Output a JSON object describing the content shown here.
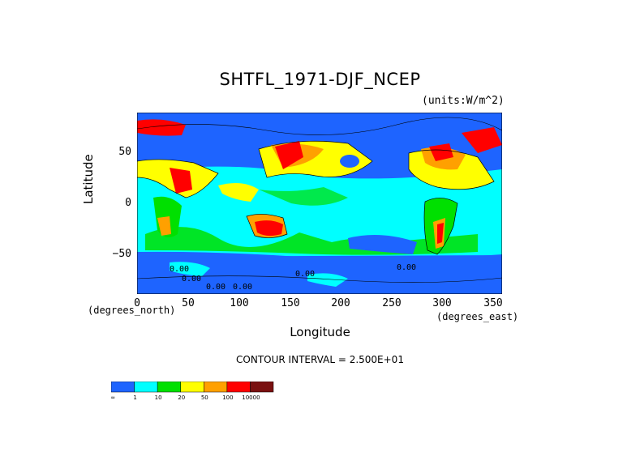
{
  "title": "SHTFL_1971-DJF_NCEP",
  "units": "(units:W/m^2)",
  "y_axis": {
    "label": "Latitude",
    "ticks": [
      "50",
      "0",
      "−50"
    ],
    "tick_values": [
      50,
      0,
      -50
    ]
  },
  "x_axis": {
    "label": "Longitude",
    "ticks": [
      "0",
      "50",
      "100",
      "150",
      "200",
      "250",
      "300",
      "350"
    ],
    "tick_values": [
      0,
      50,
      100,
      150,
      200,
      250,
      300,
      350
    ],
    "unit_left": "(degrees_north)",
    "unit_right": "(degrees_east)"
  },
  "contour_interval": "CONTOUR INTERVAL = 2.500E+01",
  "map_labels": [
    "0.00",
    "0.00",
    "0.00",
    "0.00",
    "0.00",
    "0.00"
  ],
  "colorbar": {
    "labels": [
      "-∞",
      "1",
      "10",
      "20",
      "50",
      "100",
      "10000"
    ],
    "colors": [
      "#1e64ff",
      "#00ffff",
      "#00e000",
      "#ffff00",
      "#ffa000",
      "#ff0000",
      "#7a1010"
    ]
  },
  "colors": {
    "ocean_cold": "#1e64ff",
    "ocean_low": "#00ffff",
    "mid": "#00e000",
    "warm": "#ffff00",
    "hot": "#ffa000",
    "hotter": "#ff0000",
    "max": "#8a0c0c"
  },
  "chart_data": {
    "type": "heatmap",
    "title": "SHTFL_1971-DJF_NCEP",
    "xlabel": "Longitude",
    "ylabel": "Latitude",
    "xlim": [
      0,
      360
    ],
    "ylim": [
      -90,
      90
    ],
    "units": "W/m^2",
    "levels": [
      "-∞",
      "1",
      "10",
      "20",
      "50",
      "100",
      "10000"
    ],
    "contour_interval": 25
  }
}
